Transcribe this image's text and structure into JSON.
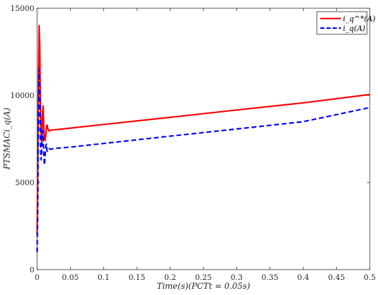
{
  "chart_data": {
    "type": "line",
    "xlabel": "Time(s)(PCTt = 0.05s)",
    "ylabel": "PTSMACi_q(A)",
    "xlim": [
      0,
      0.5
    ],
    "ylim": [
      0,
      15000
    ],
    "xticks": [
      "0",
      "0.05",
      "0.1",
      "0.15",
      "0.2",
      "0.25",
      "0.3",
      "0.35",
      "0.4",
      "0.45",
      "0.5"
    ],
    "yticks": [
      "0",
      "5000",
      "10000",
      "15000"
    ],
    "grid": false,
    "legend_position": "top-right",
    "series": [
      {
        "name": "i_q^*(A)",
        "color": "#ff0000",
        "dash": "solid",
        "x": [
          0,
          0.001,
          0.002,
          0.003,
          0.004,
          0.005,
          0.006,
          0.007,
          0.008,
          0.009,
          0.01,
          0.011,
          0.012,
          0.013,
          0.014,
          0.015,
          0.016,
          0.018,
          0.02,
          0.025,
          0.05,
          0.1,
          0.2,
          0.3,
          0.4,
          0.5
        ],
        "y": [
          2000,
          6000,
          11000,
          14000,
          12800,
          9500,
          7600,
          7300,
          8800,
          9400,
          8200,
          7500,
          7400,
          7700,
          8200,
          8300,
          8100,
          7950,
          8000,
          8020,
          8120,
          8330,
          8740,
          9160,
          9570,
          10050
        ]
      },
      {
        "name": "i_q(A)",
        "color": "#0000ff",
        "dash": "dashed",
        "x": [
          0,
          0.001,
          0.002,
          0.003,
          0.004,
          0.005,
          0.006,
          0.007,
          0.008,
          0.009,
          0.01,
          0.011,
          0.012,
          0.013,
          0.014,
          0.015,
          0.016,
          0.018,
          0.02,
          0.025,
          0.05,
          0.1,
          0.2,
          0.3,
          0.4,
          0.5
        ],
        "y": [
          1000,
          3500,
          8500,
          11500,
          10500,
          7500,
          6300,
          7000,
          8000,
          7800,
          6500,
          6000,
          6500,
          7100,
          7200,
          6800,
          6800,
          6950,
          6900,
          6950,
          7030,
          7240,
          7660,
          8070,
          8490,
          9300
        ]
      }
    ]
  }
}
